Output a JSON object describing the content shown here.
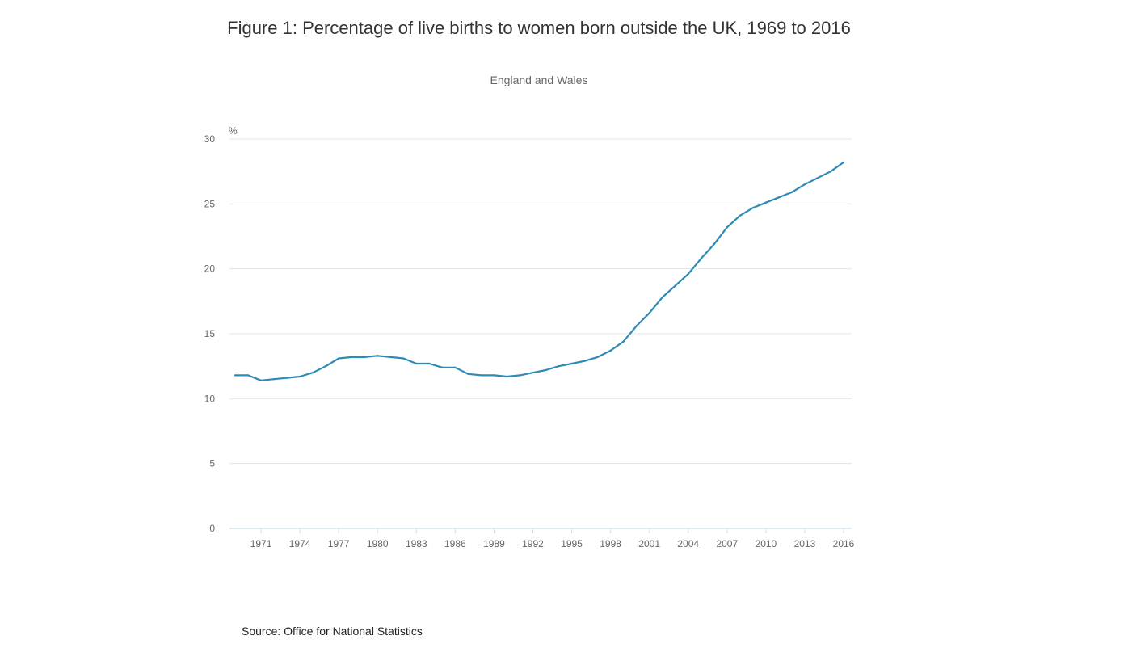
{
  "title": "Figure 1: Percentage of live births to women born outside the UK, 1969 to 2016",
  "subtitle": "England and Wales",
  "source": "Source: Office for National Statistics",
  "colors": {
    "line": "#2e8bb5",
    "grid": "#e5e5e5",
    "axis": "#cfe0ea",
    "text": "#666666"
  },
  "chart_data": {
    "type": "line",
    "title": "Figure 1: Percentage of live births to women born outside the UK, 1969 to 2016",
    "subtitle": "England and Wales",
    "xlabel": "",
    "ylabel": "%",
    "xlim": [
      1969,
      2016
    ],
    "ylim": [
      0,
      30
    ],
    "yticks": [
      0,
      5,
      10,
      15,
      20,
      25,
      30
    ],
    "xticks": [
      1971,
      1974,
      1977,
      1980,
      1983,
      1986,
      1989,
      1992,
      1995,
      1998,
      2001,
      2004,
      2007,
      2010,
      2013,
      2016
    ],
    "grid": true,
    "legend": "none",
    "series": [
      {
        "x": [
          1969,
          1970,
          1971,
          1972,
          1973,
          1974,
          1975,
          1976,
          1977,
          1978,
          1979,
          1980,
          1981,
          1982,
          1983,
          1984,
          1985,
          1986,
          1987,
          1988,
          1989,
          1990,
          1991,
          1992,
          1993,
          1994,
          1995,
          1996,
          1997,
          1998,
          1999,
          2000,
          2001,
          2002,
          2003,
          2004,
          2005,
          2006,
          2007,
          2008,
          2009,
          2010,
          2011,
          2012,
          2013,
          2014,
          2015,
          2016
        ],
        "values": [
          11.8,
          11.8,
          11.4,
          11.5,
          11.6,
          11.7,
          12.0,
          12.5,
          13.1,
          13.2,
          13.2,
          13.3,
          13.2,
          13.1,
          12.7,
          12.7,
          12.4,
          12.4,
          11.9,
          11.8,
          11.8,
          11.7,
          11.8,
          12.0,
          12.2,
          12.5,
          12.7,
          12.9,
          13.2,
          13.7,
          14.4,
          15.6,
          16.6,
          17.8,
          18.7,
          19.6,
          20.8,
          21.9,
          23.2,
          24.1,
          24.7,
          25.1,
          25.5,
          25.9,
          26.5,
          27.0,
          27.5,
          28.2
        ]
      }
    ]
  }
}
